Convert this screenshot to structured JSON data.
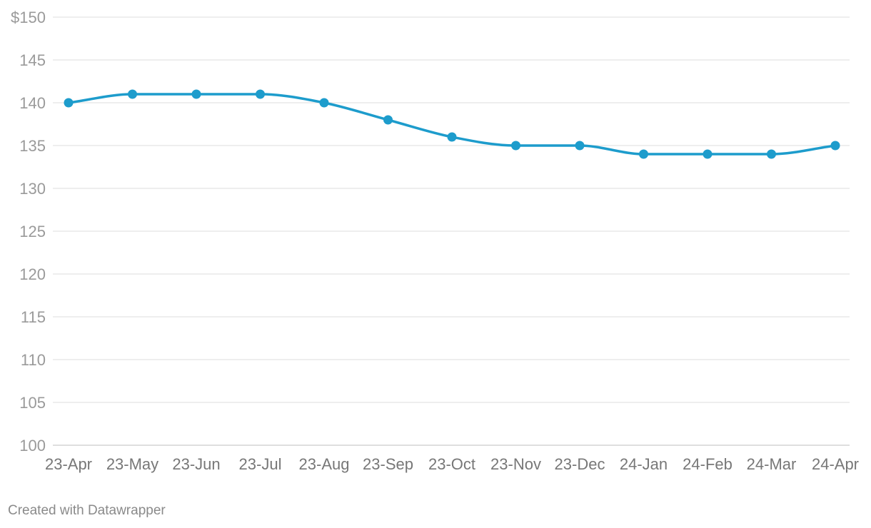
{
  "chart_data": {
    "type": "line",
    "x": [
      "23-Apr",
      "23-May",
      "23-Jun",
      "23-Jul",
      "23-Aug",
      "23-Sep",
      "23-Oct",
      "23-Nov",
      "23-Dec",
      "24-Jan",
      "24-Feb",
      "24-Mar",
      "24-Apr"
    ],
    "series": [
      {
        "values": [
          140,
          141,
          141,
          141,
          140,
          138,
          136,
          135,
          135,
          134,
          134,
          134,
          135
        ],
        "color": "#1d9ccc"
      }
    ],
    "ylim": [
      100,
      150
    ],
    "yticks": [
      100,
      105,
      110,
      115,
      120,
      125,
      130,
      135,
      140,
      145,
      150
    ],
    "ytick_labels": [
      "100",
      "105",
      "110",
      "115",
      "120",
      "125",
      "130",
      "135",
      "140",
      "145",
      "$150"
    ],
    "grid": true,
    "line_style": "smooth",
    "markers": true
  },
  "footer": {
    "credit": "Created with Datawrapper"
  }
}
